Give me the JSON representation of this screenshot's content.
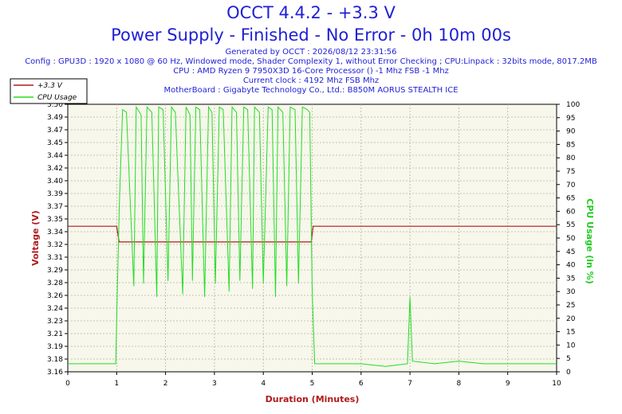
{
  "title_line1": "OCCT 4.4.2 - +3.3 V",
  "title_line2": "Power Supply - Finished - No Error - 0h 10m 00s",
  "info_lines": [
    "Generated by OCCT : 2026/08/12 23:31:56",
    "Config : GPU3D : 1920 x 1080 @ 60 Hz, Windowed mode, Shader Complexity 1, without Error Checking ; CPU:Linpack : 32bits mode, 8017.2MB",
    "CPU : AMD Ryzen 9 7950X3D 16-Core Processor () -1 Mhz FSB -1 Mhz",
    "Current clock : 4192 Mhz FSB  Mhz",
    "MotherBoard : Gigabyte Technology Co., Ltd.: B850M AORUS STEALTH ICE"
  ],
  "colors": {
    "title": "#1f1fd6",
    "axis_label": "#b01a1a",
    "right_axis_label": "#22cc22",
    "plot_bg": "#f7f7ec",
    "grid": "#b5b59a",
    "voltage_line": "#b01a1a",
    "cpu_line": "#22dd22"
  },
  "chart_data": {
    "type": "line",
    "xlabel": "Duration (Minutes)",
    "ylabel": "Voltage (V)",
    "y2label": "CPU Usage (in %)",
    "xlim": [
      0,
      10
    ],
    "ylim": [
      3.16,
      3.5
    ],
    "y2lim": [
      0,
      100
    ],
    "x_ticks": [
      "0",
      "1",
      "2",
      "3",
      "4",
      "5",
      "6",
      "7",
      "8",
      "9",
      "10"
    ],
    "y_ticks": [
      "3.16",
      "3.18",
      "3.19",
      "3.21",
      "3.23",
      "3.24",
      "3.26",
      "3.28",
      "3.29",
      "3.31",
      "3.32",
      "3.34",
      "3.35",
      "3.37",
      "3.39",
      "3.40",
      "3.42",
      "3.44",
      "3.45",
      "3.47",
      "3.49",
      "3.50"
    ],
    "y2_ticks": [
      "0",
      "5",
      "10",
      "15",
      "20",
      "25",
      "30",
      "35",
      "40",
      "45",
      "50",
      "55",
      "60",
      "65",
      "70",
      "75",
      "80",
      "85",
      "90",
      "95",
      "100"
    ],
    "grid": true,
    "legend_position": "top-left",
    "series": [
      {
        "name": "+3.3 V",
        "axis": "left",
        "x": [
          0,
          1.0,
          1.05,
          4.98,
          5.02,
          10
        ],
        "y": [
          3.345,
          3.345,
          3.325,
          3.325,
          3.345,
          3.345
        ]
      },
      {
        "name": "CPU Usage",
        "axis": "right",
        "x": [
          0,
          0.5,
          0.98,
          1.05,
          1.12,
          1.2,
          1.35,
          1.4,
          1.5,
          1.55,
          1.62,
          1.72,
          1.82,
          1.86,
          1.95,
          2.05,
          2.12,
          2.2,
          2.35,
          2.42,
          2.5,
          2.55,
          2.62,
          2.7,
          2.8,
          2.88,
          2.95,
          3.02,
          3.1,
          3.18,
          3.3,
          3.36,
          3.45,
          3.52,
          3.6,
          3.68,
          3.78,
          3.82,
          3.92,
          4.0,
          4.1,
          4.18,
          4.25,
          4.3,
          4.4,
          4.48,
          4.55,
          4.65,
          4.72,
          4.8,
          4.9,
          4.95,
          5.0,
          5.05,
          5.5,
          6.0,
          6.5,
          6.95,
          7.0,
          7.05,
          7.5,
          8.0,
          8.5,
          9.0,
          9.5,
          10.0
        ],
        "y": [
          3,
          3,
          3,
          60,
          98,
          97,
          32,
          99,
          96,
          33,
          99,
          97,
          28,
          99,
          98,
          34,
          99,
          97,
          29,
          99,
          96,
          34,
          99,
          98,
          28,
          99,
          97,
          33,
          99,
          98,
          30,
          99,
          97,
          34,
          99,
          98,
          31,
          99,
          97,
          33,
          99,
          98,
          28,
          99,
          97,
          32,
          99,
          98,
          33,
          99,
          98,
          97,
          30,
          3,
          3,
          3,
          2,
          3,
          28,
          4,
          3,
          4,
          3,
          3,
          3,
          3
        ]
      }
    ]
  }
}
